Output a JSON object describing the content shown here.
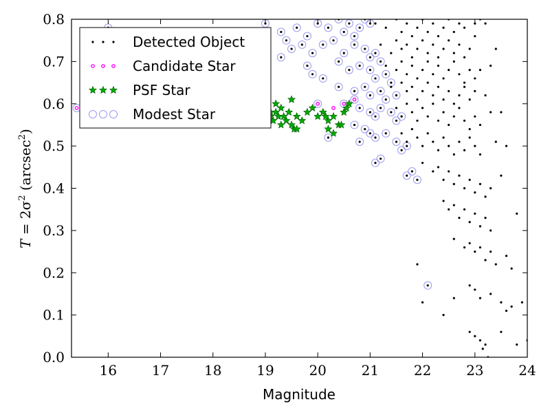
{
  "chart_data": {
    "type": "scatter",
    "title": "",
    "xlabel": "Magnitude",
    "ylabel": "T = 2σ² (arcsec²)",
    "ylabel_parts": {
      "prefix": "T",
      "eq": " = 2σ",
      "sup": "2",
      "unit": " (arcsec",
      "unit_sup": "2",
      "close": ")"
    },
    "xlim": [
      15.3,
      24
    ],
    "ylim": [
      0.0,
      0.8
    ],
    "xticks": [
      "16",
      "17",
      "18",
      "19",
      "20",
      "21",
      "22",
      "23",
      "24"
    ],
    "yticks": [
      "0.0",
      "0.1",
      "0.2",
      "0.3",
      "0.4",
      "0.5",
      "0.6",
      "0.7",
      "0.8"
    ],
    "grid": false,
    "legend_position": "upper-left",
    "series": [
      {
        "name": "Detected Object",
        "marker": "dot",
        "color": "#000000"
      },
      {
        "name": "Candidate Star",
        "marker": "small-circle",
        "color": "#ff00ff"
      },
      {
        "name": "PSF Star",
        "marker": "star",
        "color": "#00aa00"
      },
      {
        "name": "Modest Star",
        "marker": "open-circle",
        "color": "#9999ee"
      }
    ],
    "detected_points": [
      [
        21.1,
        0.79
      ],
      [
        21.3,
        0.78
      ],
      [
        21.5,
        0.8
      ],
      [
        21.6,
        0.77
      ],
      [
        21.7,
        0.79
      ],
      [
        21.8,
        0.76
      ],
      [
        21.9,
        0.78
      ],
      [
        22.0,
        0.8
      ],
      [
        22.1,
        0.77
      ],
      [
        22.2,
        0.79
      ],
      [
        22.3,
        0.76
      ],
      [
        22.4,
        0.78
      ],
      [
        22.5,
        0.8
      ],
      [
        22.6,
        0.77
      ],
      [
        22.7,
        0.79
      ],
      [
        22.8,
        0.78
      ],
      [
        23.0,
        0.79
      ],
      [
        23.1,
        0.8
      ],
      [
        23.2,
        0.79
      ],
      [
        21.2,
        0.74
      ],
      [
        21.4,
        0.72
      ],
      [
        21.5,
        0.75
      ],
      [
        21.6,
        0.73
      ],
      [
        21.7,
        0.74
      ],
      [
        21.8,
        0.71
      ],
      [
        21.9,
        0.73
      ],
      [
        22.0,
        0.75
      ],
      [
        22.1,
        0.72
      ],
      [
        22.2,
        0.74
      ],
      [
        22.3,
        0.71
      ],
      [
        22.4,
        0.73
      ],
      [
        22.5,
        0.75
      ],
      [
        22.6,
        0.72
      ],
      [
        22.7,
        0.74
      ],
      [
        22.8,
        0.71
      ],
      [
        22.9,
        0.73
      ],
      [
        23.0,
        0.76
      ],
      [
        23.4,
        0.73
      ],
      [
        23.3,
        0.69
      ],
      [
        21.3,
        0.69
      ],
      [
        21.5,
        0.68
      ],
      [
        21.6,
        0.7
      ],
      [
        21.7,
        0.67
      ],
      [
        21.8,
        0.69
      ],
      [
        21.9,
        0.66
      ],
      [
        22.0,
        0.68
      ],
      [
        22.1,
        0.7
      ],
      [
        22.2,
        0.67
      ],
      [
        22.3,
        0.69
      ],
      [
        22.4,
        0.66
      ],
      [
        22.5,
        0.68
      ],
      [
        22.6,
        0.7
      ],
      [
        22.7,
        0.67
      ],
      [
        22.8,
        0.65
      ],
      [
        22.9,
        0.68
      ],
      [
        23.0,
        0.66
      ],
      [
        23.1,
        0.68
      ],
      [
        21.4,
        0.64
      ],
      [
        21.5,
        0.62
      ],
      [
        21.6,
        0.65
      ],
      [
        21.7,
        0.63
      ],
      [
        21.8,
        0.64
      ],
      [
        21.9,
        0.61
      ],
      [
        22.0,
        0.63
      ],
      [
        22.1,
        0.65
      ],
      [
        22.2,
        0.62
      ],
      [
        22.3,
        0.64
      ],
      [
        22.4,
        0.61
      ],
      [
        22.5,
        0.63
      ],
      [
        22.6,
        0.6
      ],
      [
        22.7,
        0.62
      ],
      [
        22.8,
        0.64
      ],
      [
        22.9,
        0.61
      ],
      [
        23.0,
        0.63
      ],
      [
        23.2,
        0.62
      ],
      [
        23.5,
        0.58
      ],
      [
        21.5,
        0.59
      ],
      [
        21.6,
        0.57
      ],
      [
        21.7,
        0.6
      ],
      [
        21.8,
        0.58
      ],
      [
        21.9,
        0.56
      ],
      [
        22.0,
        0.59
      ],
      [
        22.1,
        0.57
      ],
      [
        22.2,
        0.6
      ],
      [
        22.3,
        0.56
      ],
      [
        22.4,
        0.58
      ],
      [
        22.5,
        0.55
      ],
      [
        22.6,
        0.57
      ],
      [
        22.7,
        0.59
      ],
      [
        22.8,
        0.56
      ],
      [
        22.9,
        0.54
      ],
      [
        23.0,
        0.57
      ],
      [
        23.1,
        0.55
      ],
      [
        23.3,
        0.58
      ],
      [
        21.6,
        0.53
      ],
      [
        21.7,
        0.51
      ],
      [
        21.8,
        0.54
      ],
      [
        21.9,
        0.52
      ],
      [
        22.0,
        0.5
      ],
      [
        22.1,
        0.53
      ],
      [
        22.2,
        0.51
      ],
      [
        22.3,
        0.49
      ],
      [
        22.4,
        0.52
      ],
      [
        22.5,
        0.5
      ],
      [
        22.6,
        0.48
      ],
      [
        22.7,
        0.51
      ],
      [
        22.8,
        0.49
      ],
      [
        22.9,
        0.52
      ],
      [
        23.0,
        0.5
      ],
      [
        23.1,
        0.48
      ],
      [
        23.4,
        0.51
      ],
      [
        23.6,
        0.5
      ],
      [
        22.0,
        0.46
      ],
      [
        22.2,
        0.44
      ],
      [
        22.3,
        0.45
      ],
      [
        22.4,
        0.42
      ],
      [
        22.5,
        0.44
      ],
      [
        22.6,
        0.41
      ],
      [
        22.7,
        0.43
      ],
      [
        22.8,
        0.4
      ],
      [
        22.9,
        0.42
      ],
      [
        23.0,
        0.39
      ],
      [
        23.1,
        0.41
      ],
      [
        23.2,
        0.38
      ],
      [
        23.3,
        0.4
      ],
      [
        23.5,
        0.43
      ],
      [
        22.4,
        0.37
      ],
      [
        22.5,
        0.35
      ],
      [
        22.6,
        0.36
      ],
      [
        22.7,
        0.33
      ],
      [
        22.8,
        0.35
      ],
      [
        22.9,
        0.32
      ],
      [
        23.0,
        0.34
      ],
      [
        23.1,
        0.31
      ],
      [
        23.2,
        0.33
      ],
      [
        23.3,
        0.3
      ],
      [
        23.8,
        0.34
      ],
      [
        22.6,
        0.28
      ],
      [
        22.8,
        0.26
      ],
      [
        22.9,
        0.27
      ],
      [
        23.0,
        0.25
      ],
      [
        23.1,
        0.26
      ],
      [
        23.2,
        0.23
      ],
      [
        23.3,
        0.25
      ],
      [
        23.4,
        0.22
      ],
      [
        23.6,
        0.24
      ],
      [
        23.7,
        0.21
      ],
      [
        21.9,
        0.22
      ],
      [
        22.0,
        0.13
      ],
      [
        22.4,
        0.1
      ],
      [
        22.6,
        0.14
      ],
      [
        22.9,
        0.17
      ],
      [
        23.0,
        0.16
      ],
      [
        23.1,
        0.14
      ],
      [
        23.3,
        0.15
      ],
      [
        23.5,
        0.13
      ],
      [
        23.6,
        0.11
      ],
      [
        23.7,
        0.12
      ],
      [
        23.9,
        0.13
      ],
      [
        22.9,
        0.06
      ],
      [
        23.0,
        0.05
      ],
      [
        23.1,
        0.04
      ],
      [
        23.15,
        0.02
      ],
      [
        23.2,
        0.03
      ],
      [
        23.25,
        0.0
      ],
      [
        23.5,
        0.06
      ],
      [
        23.8,
        0.03
      ],
      [
        24.0,
        0.04
      ]
    ],
    "psf_points": [
      [
        19.0,
        0.59
      ],
      [
        19.1,
        0.57
      ],
      [
        19.15,
        0.56
      ],
      [
        19.2,
        0.58
      ],
      [
        19.25,
        0.57
      ],
      [
        19.3,
        0.55
      ],
      [
        19.35,
        0.57
      ],
      [
        19.4,
        0.56
      ],
      [
        19.45,
        0.58
      ],
      [
        19.5,
        0.55
      ],
      [
        19.55,
        0.54
      ],
      [
        19.6,
        0.57
      ],
      [
        19.7,
        0.56
      ],
      [
        19.8,
        0.58
      ],
      [
        19.9,
        0.59
      ],
      [
        20.0,
        0.57
      ],
      [
        20.1,
        0.58
      ],
      [
        20.2,
        0.56
      ],
      [
        20.3,
        0.57
      ],
      [
        20.4,
        0.55
      ],
      [
        20.5,
        0.58
      ],
      [
        20.6,
        0.6
      ],
      [
        20.2,
        0.54
      ],
      [
        20.3,
        0.53
      ],
      [
        19.5,
        0.61
      ],
      [
        19.3,
        0.59
      ],
      [
        19.2,
        0.6
      ],
      [
        19.6,
        0.54
      ],
      [
        20.45,
        0.55
      ],
      [
        20.55,
        0.59
      ],
      [
        20.15,
        0.57
      ],
      [
        19.1,
        0.58
      ]
    ],
    "candidate_points": [
      [
        15.4,
        0.59
      ],
      [
        20.0,
        0.6
      ],
      [
        20.7,
        0.61
      ],
      [
        20.5,
        0.6
      ],
      [
        20.3,
        0.59
      ]
    ],
    "modest_points": [
      [
        16.0,
        0.78
      ],
      [
        19.0,
        0.79
      ],
      [
        19.3,
        0.77
      ],
      [
        19.6,
        0.78
      ],
      [
        19.8,
        0.76
      ],
      [
        20.0,
        0.79
      ],
      [
        20.2,
        0.78
      ],
      [
        20.4,
        0.8
      ],
      [
        20.5,
        0.77
      ],
      [
        20.6,
        0.79
      ],
      [
        20.7,
        0.76
      ],
      [
        20.8,
        0.78
      ],
      [
        20.9,
        0.8
      ],
      [
        21.0,
        0.79
      ],
      [
        19.4,
        0.75
      ],
      [
        19.5,
        0.73
      ],
      [
        19.7,
        0.74
      ],
      [
        19.9,
        0.72
      ],
      [
        20.1,
        0.74
      ],
      [
        20.3,
        0.75
      ],
      [
        20.5,
        0.72
      ],
      [
        20.7,
        0.74
      ],
      [
        20.9,
        0.73
      ],
      [
        21.0,
        0.71
      ],
      [
        21.1,
        0.72
      ],
      [
        21.2,
        0.7
      ],
      [
        19.3,
        0.71
      ],
      [
        19.8,
        0.69
      ],
      [
        20.4,
        0.7
      ],
      [
        20.6,
        0.68
      ],
      [
        20.8,
        0.69
      ],
      [
        21.0,
        0.68
      ],
      [
        21.1,
        0.66
      ],
      [
        21.3,
        0.67
      ],
      [
        21.4,
        0.65
      ],
      [
        19.9,
        0.67
      ],
      [
        20.1,
        0.66
      ],
      [
        20.4,
        0.64
      ],
      [
        20.7,
        0.63
      ],
      [
        20.9,
        0.64
      ],
      [
        21.0,
        0.62
      ],
      [
        21.2,
        0.63
      ],
      [
        21.3,
        0.61
      ],
      [
        21.5,
        0.62
      ],
      [
        20.5,
        0.6
      ],
      [
        20.8,
        0.59
      ],
      [
        21.0,
        0.58
      ],
      [
        21.1,
        0.57
      ],
      [
        21.2,
        0.59
      ],
      [
        21.4,
        0.58
      ],
      [
        21.5,
        0.56
      ],
      [
        21.6,
        0.57
      ],
      [
        20.7,
        0.55
      ],
      [
        20.9,
        0.54
      ],
      [
        21.0,
        0.53
      ],
      [
        21.1,
        0.52
      ],
      [
        21.3,
        0.53
      ],
      [
        21.5,
        0.51
      ],
      [
        21.7,
        0.5
      ],
      [
        20.2,
        0.52
      ],
      [
        20.8,
        0.51
      ],
      [
        21.2,
        0.47
      ],
      [
        21.1,
        0.46
      ],
      [
        21.6,
        0.49
      ],
      [
        21.7,
        0.43
      ],
      [
        21.8,
        0.44
      ],
      [
        21.9,
        0.42
      ],
      [
        22.1,
        0.17
      ],
      [
        15.4,
        0.59
      ],
      [
        20.0,
        0.6
      ],
      [
        20.7,
        0.61
      ]
    ]
  }
}
